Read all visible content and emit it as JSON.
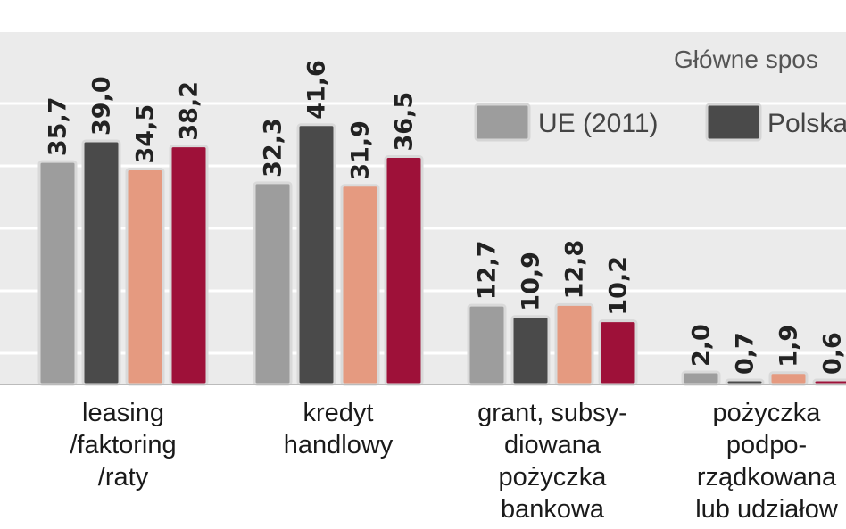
{
  "chart_data": {
    "type": "bar",
    "title": "Główne spos",
    "categories": [
      [
        "leasing",
        "/faktoring",
        "/raty"
      ],
      [
        "kredyt",
        "handlowy"
      ],
      [
        "grant, subsy-",
        "diowana",
        "pożyczka",
        "bankowa"
      ],
      [
        "pożyczka",
        "podpo-",
        "rządkowana",
        "lub udziałow"
      ]
    ],
    "series": [
      {
        "name": "UE (2011)",
        "color": "#9d9d9d",
        "values": [
          35.7,
          32.3,
          12.7,
          2.0
        ],
        "labels": [
          "35,7",
          "32,3",
          "12,7",
          "2,0"
        ]
      },
      {
        "name": "Polska",
        "color": "#4a4a4a",
        "values": [
          39.0,
          41.6,
          10.9,
          0.7
        ],
        "labels": [
          "39,0",
          "41,6",
          "10,9",
          "0,7"
        ]
      },
      {
        "name": "",
        "color": "#e59a80",
        "values": [
          34.5,
          31.9,
          12.8,
          1.9
        ],
        "labels": [
          "34,5",
          "31,9",
          "12,8",
          "1,9"
        ]
      },
      {
        "name": "",
        "color": "#9e1139",
        "values": [
          38.2,
          36.5,
          10.2,
          0.6
        ],
        "labels": [
          "38,2",
          "36,5",
          "10,2",
          "0,6"
        ]
      }
    ],
    "grid": true,
    "legend_placement": "top-right",
    "ylim": [
      0,
      50
    ],
    "background": "#ebebeb"
  }
}
